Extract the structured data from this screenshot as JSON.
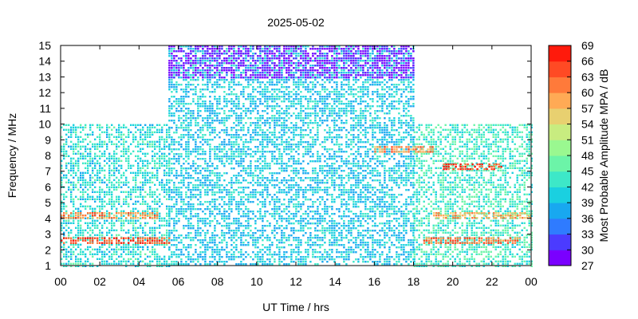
{
  "chart_data": {
    "type": "heatmap",
    "title": "2025-05-02",
    "xlabel": "UT Time / hrs",
    "ylabel": "Frequency / MHz",
    "colorbar_label": "Most Probable Amplitude MPA / dB",
    "xlim": [
      0,
      24
    ],
    "ylim": [
      1,
      15
    ],
    "x_tick_labels": [
      "00",
      "02",
      "04",
      "06",
      "08",
      "10",
      "12",
      "14",
      "16",
      "18",
      "20",
      "22",
      "00"
    ],
    "y_tick_labels": [
      "1",
      "2",
      "3",
      "4",
      "5",
      "6",
      "7",
      "8",
      "9",
      "10",
      "11",
      "12",
      "13",
      "14",
      "15"
    ],
    "colorbar": {
      "range": [
        27,
        69
      ],
      "tick_labels": [
        "27",
        "30",
        "33",
        "36",
        "39",
        "42",
        "45",
        "48",
        "51",
        "54",
        "57",
        "60",
        "63",
        "66",
        "69"
      ],
      "colors": [
        "#7a00ff",
        "#4b3bff",
        "#2f7bff",
        "#18a8f0",
        "#1ad0e0",
        "#3de8c8",
        "#6cf4a8",
        "#9af890",
        "#c8ec80",
        "#e8d070",
        "#ffaa55",
        "#ff7a3a",
        "#ff4a24",
        "#ff1a0c"
      ]
    },
    "bands": [
      {
        "x": [
          0,
          5.5
        ],
        "y": [
          1,
          10
        ],
        "mpa": 42
      },
      {
        "x": [
          5.5,
          18
        ],
        "y": [
          1,
          15
        ],
        "mpa": 40
      },
      {
        "x": [
          18,
          24
        ],
        "y": [
          1,
          10
        ],
        "mpa": 44
      },
      {
        "x": [
          5.5,
          18
        ],
        "y": [
          13,
          15
        ],
        "mpa": 29
      },
      {
        "x": [
          0,
          5.5
        ],
        "y": [
          2.4,
          2.8
        ],
        "mpa": 64
      },
      {
        "x": [
          18.5,
          23.5
        ],
        "y": [
          2.4,
          2.8
        ],
        "mpa": 62
      },
      {
        "x": [
          0,
          5
        ],
        "y": [
          4,
          4.4
        ],
        "mpa": 60
      },
      {
        "x": [
          19,
          24
        ],
        "y": [
          4,
          4.4
        ],
        "mpa": 58
      },
      {
        "x": [
          19.5,
          22.5
        ],
        "y": [
          7.1,
          7.5
        ],
        "mpa": 66
      },
      {
        "x": [
          16,
          19
        ],
        "y": [
          8.2,
          8.6
        ],
        "mpa": 60
      }
    ]
  }
}
